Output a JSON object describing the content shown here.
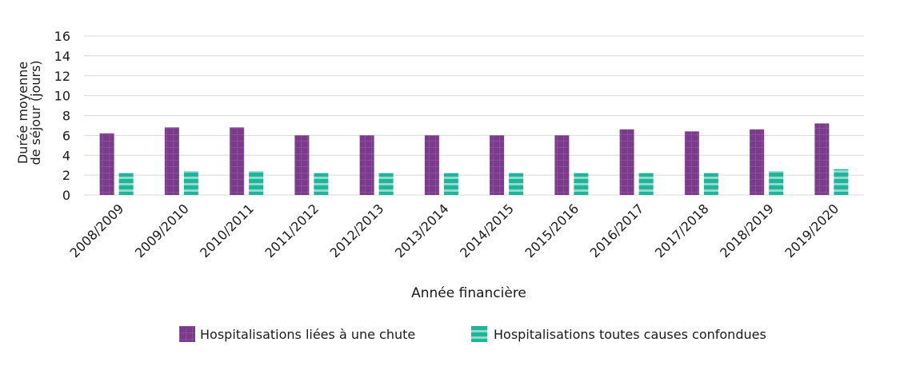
{
  "chart_data": {
    "type": "bar",
    "categories": [
      "2008/2009",
      "2009/2010",
      "2010/2011",
      "2011/2012",
      "2012/2013",
      "2013/2014",
      "2014/2015",
      "2015/2016",
      "2016/2017",
      "2017/2018",
      "2018/2019",
      "2019/2020"
    ],
    "series": [
      {
        "name": "Hospitalisations liées à une chute",
        "values": [
          6.2,
          6.8,
          6.8,
          6.0,
          6.0,
          6.0,
          6.0,
          6.0,
          6.6,
          6.4,
          6.6,
          7.2
        ],
        "color": "#7b3a8c",
        "pattern": "grid"
      },
      {
        "name": "Hospitalisations toutes causes confondues",
        "values": [
          2.2,
          2.4,
          2.4,
          2.2,
          2.2,
          2.2,
          2.2,
          2.2,
          2.2,
          2.2,
          2.4,
          2.6
        ],
        "color": "#1fb59a",
        "pattern": "horizontal-stripes"
      }
    ],
    "yticks": [
      "0",
      "2",
      "4",
      "6",
      "8",
      "10",
      "12",
      "14",
      "16"
    ],
    "ylim": [
      0,
      16
    ],
    "xlabel": "Année financière",
    "ylabel_lines": [
      "Durée moyenne",
      "de séjour (jours)"
    ],
    "grid": true,
    "legend_position": "bottom-center"
  }
}
